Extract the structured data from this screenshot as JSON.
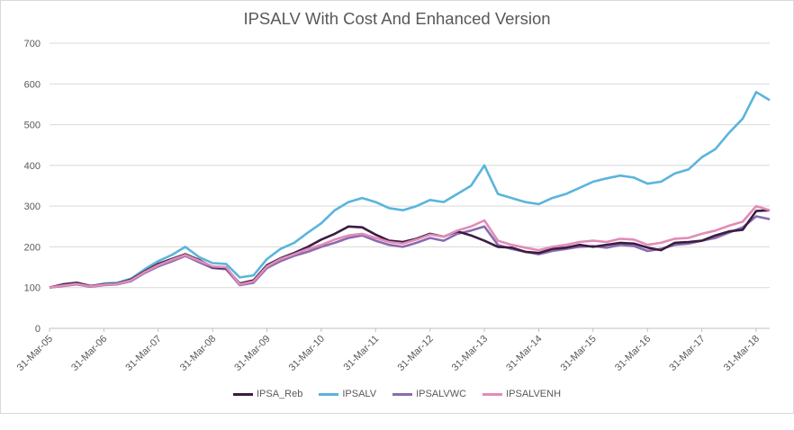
{
  "chart_data": {
    "type": "line",
    "title": "IPSALV With Cost And Enhanced Version",
    "xlabel": "",
    "ylabel": "",
    "ylim": [
      0,
      700
    ],
    "yticks": [
      "0",
      "100",
      "200",
      "300",
      "400",
      "500",
      "600",
      "700"
    ],
    "xticks": [
      "31-Mar-05",
      "31-Mar-06",
      "31-Mar-07",
      "31-Mar-08",
      "31-Mar-09",
      "31-Mar-10",
      "31-Mar-11",
      "31-Mar-12",
      "31-Mar-13",
      "31-Mar-14",
      "31-Mar-15",
      "31-Mar-16",
      "31-Mar-17",
      "31-Mar-18"
    ],
    "x_dates": [
      "2005-03-31",
      "2005-06-30",
      "2005-09-30",
      "2005-12-31",
      "2006-03-31",
      "2006-06-30",
      "2006-09-30",
      "2006-12-31",
      "2007-03-31",
      "2007-06-30",
      "2007-09-30",
      "2007-12-31",
      "2008-03-31",
      "2008-06-30",
      "2008-09-30",
      "2008-12-31",
      "2009-03-31",
      "2009-06-30",
      "2009-09-30",
      "2009-12-31",
      "2010-03-31",
      "2010-06-30",
      "2010-09-30",
      "2010-12-31",
      "2011-03-31",
      "2011-06-30",
      "2011-09-30",
      "2011-12-31",
      "2012-03-31",
      "2012-06-30",
      "2012-09-30",
      "2012-12-31",
      "2013-03-31",
      "2013-06-30",
      "2013-09-30",
      "2013-12-31",
      "2014-03-31",
      "2014-06-30",
      "2014-09-30",
      "2014-12-31",
      "2015-03-31",
      "2015-06-30",
      "2015-09-30",
      "2015-12-31",
      "2016-03-31",
      "2016-06-30",
      "2016-09-30",
      "2016-12-31",
      "2017-03-31",
      "2017-06-30",
      "2017-09-30",
      "2017-12-31",
      "2018-03-31",
      "2018-06-30"
    ],
    "grid": true,
    "legend_position": "bottom",
    "series": [
      {
        "name": "IPSA_Reb",
        "color": "#3b1c3f",
        "values": [
          100,
          108,
          112,
          104,
          108,
          110,
          120,
          140,
          158,
          170,
          182,
          168,
          150,
          148,
          110,
          118,
          155,
          172,
          185,
          200,
          218,
          232,
          250,
          248,
          230,
          215,
          212,
          220,
          232,
          225,
          238,
          228,
          215,
          200,
          198,
          188,
          185,
          195,
          198,
          205,
          200,
          205,
          210,
          208,
          198,
          192,
          210,
          212,
          215,
          228,
          238,
          242,
          288,
          290
        ]
      },
      {
        "name": "IPSALV",
        "color": "#5ab4dc",
        "values": [
          100,
          105,
          110,
          103,
          110,
          112,
          122,
          145,
          165,
          180,
          200,
          175,
          160,
          158,
          125,
          130,
          170,
          195,
          210,
          235,
          258,
          290,
          310,
          320,
          310,
          295,
          290,
          300,
          315,
          310,
          330,
          350,
          400,
          330,
          320,
          310,
          305,
          320,
          330,
          345,
          360,
          368,
          375,
          370,
          355,
          360,
          380,
          390,
          420,
          440,
          480,
          515,
          580,
          560
        ]
      },
      {
        "name": "IPSALVWC",
        "color": "#8a6bb0",
        "values": [
          100,
          104,
          108,
          102,
          106,
          108,
          116,
          136,
          152,
          164,
          178,
          162,
          148,
          145,
          106,
          112,
          148,
          165,
          178,
          188,
          200,
          210,
          222,
          228,
          215,
          205,
          200,
          210,
          222,
          215,
          232,
          240,
          250,
          205,
          195,
          188,
          182,
          190,
          195,
          200,
          202,
          198,
          205,
          202,
          190,
          195,
          205,
          208,
          215,
          222,
          235,
          248,
          275,
          268
        ]
      },
      {
        "name": "IPSALVENH",
        "color": "#e38bb8",
        "values": [
          100,
          105,
          109,
          103,
          107,
          109,
          118,
          138,
          155,
          168,
          180,
          166,
          152,
          150,
          108,
          115,
          152,
          170,
          182,
          195,
          205,
          218,
          228,
          232,
          222,
          212,
          208,
          218,
          230,
          225,
          240,
          250,
          265,
          215,
          205,
          198,
          192,
          200,
          205,
          212,
          215,
          212,
          220,
          218,
          205,
          210,
          220,
          222,
          232,
          240,
          252,
          262,
          300,
          290
        ]
      }
    ]
  }
}
